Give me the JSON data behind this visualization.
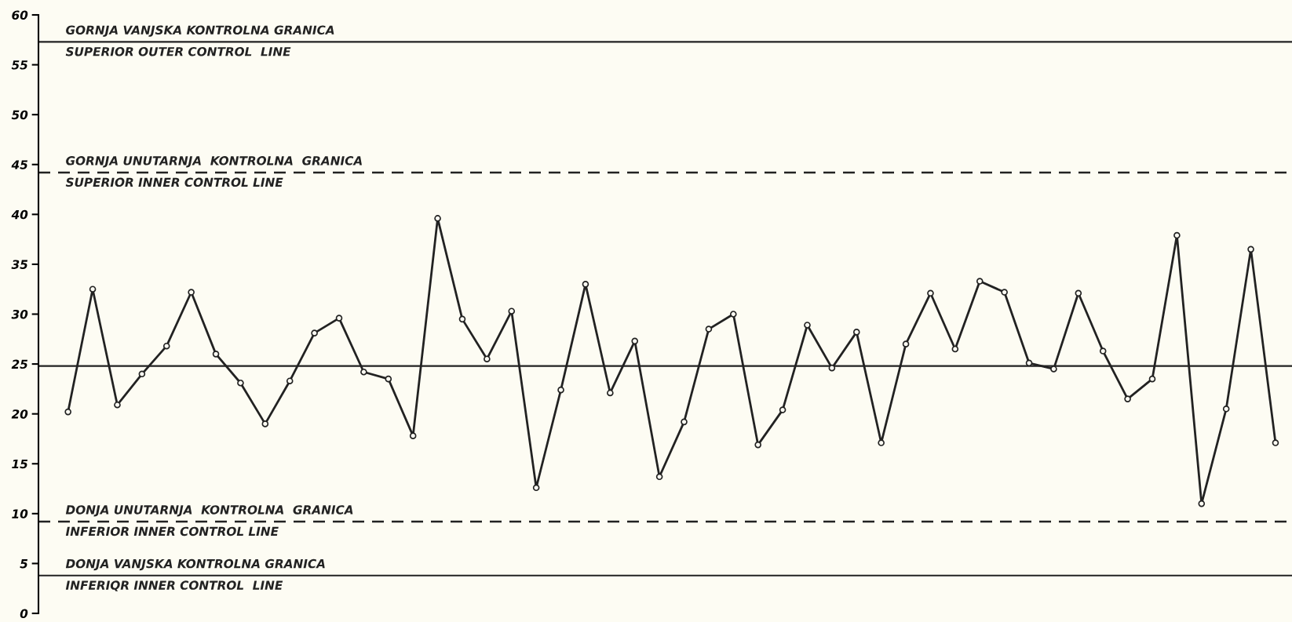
{
  "chart_data": {
    "type": "line",
    "categories": [
      null,
      null,
      null,
      null,
      null,
      null,
      null,
      null,
      null,
      null,
      null,
      null,
      null,
      null,
      null,
      null,
      null,
      null,
      null,
      null,
      null,
      null,
      null,
      null,
      null,
      null,
      null,
      null,
      null,
      null,
      null,
      null,
      null,
      null,
      null,
      null,
      null,
      null,
      null,
      null,
      null,
      null,
      null,
      null,
      null,
      null,
      null,
      null,
      null,
      null
    ],
    "series": [
      {
        "color": "#222222",
        "values": [
          20.2,
          32.5,
          20.9,
          24,
          26.8,
          32.2,
          26,
          23.1,
          19,
          23.3,
          28.1,
          29.6,
          24.2,
          23.5,
          17.8,
          39.6,
          29.5,
          25.5,
          30.3,
          12.6,
          22.4,
          33,
          22.1,
          27.3,
          13.7,
          19.2,
          28.5,
          30,
          16.9,
          20.4,
          28.9,
          24.6,
          28.2,
          17.1,
          27,
          32.1,
          26.5,
          33.3,
          32.2,
          25.1,
          24.5,
          32.1,
          26.3,
          21.5,
          23.5,
          37.9,
          11,
          20.5,
          36.5,
          17.1
        ]
      }
    ],
    "ylim": [
      0,
      60
    ],
    "yticks": [
      0,
      5,
      10,
      15,
      20,
      25,
      30,
      35,
      40,
      45,
      50,
      55,
      60
    ],
    "tick_labels": "y",
    "marker": "circle",
    "line_style": "solid",
    "grid": false,
    "legend": false,
    "ref_lines": [
      {
        "axis": "y",
        "value": 57.3,
        "label": "GORNJA VANJSKA KONTROLNA GRANICA\nSUPERIOR OUTER CONTROL  LINE",
        "color": "#222222",
        "line_style": "solid"
      },
      {
        "axis": "y",
        "value": 44.2,
        "label": "GORNJA UNUTARNJA  KONTROLNA  GRANICA\nSUPERIOR INNER CONTROL LINE",
        "color": "#222222",
        "line_style": "dashed"
      },
      {
        "axis": "y",
        "value": 24.8,
        "color": "#222222",
        "line_style": "solid"
      },
      {
        "axis": "y",
        "value": 9.2,
        "label": "DONJA UNUTARNJA  KONTROLNA  GRANICA\nINFERIOR INNER CONTROL LINE",
        "color": "#222222",
        "line_style": "dashed"
      },
      {
        "axis": "y",
        "value": 3.8,
        "label": "DONJA VANJSKA KONTROLNA GRANICA\nINFERIQR INNER CONTROL  LINE",
        "color": "#222222",
        "line_style": "solid"
      }
    ]
  }
}
